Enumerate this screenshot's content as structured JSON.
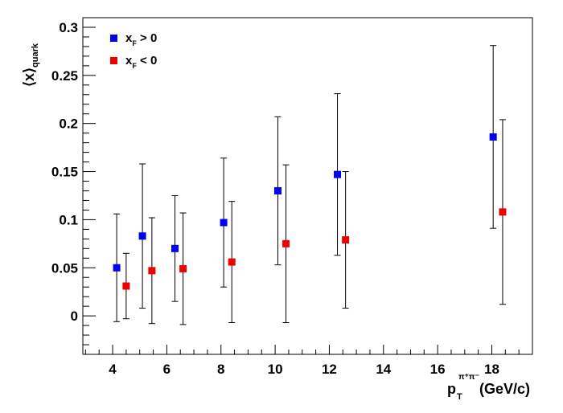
{
  "chart_data": {
    "type": "scatter",
    "xlabel": {
      "main": "p",
      "sub": "T",
      "sup": "π⁺π⁻",
      "unit": "(GeV/c)"
    },
    "ylabel": {
      "main": "⟨x⟩",
      "sub": "quark"
    },
    "xlim": [
      2.9,
      19.5
    ],
    "ylim": [
      -0.04,
      0.31
    ],
    "x_ticks": [
      4,
      6,
      8,
      10,
      12,
      14,
      16,
      18
    ],
    "x_tick_labels": [
      "4",
      "6",
      "8",
      "10",
      "12",
      "14",
      "16",
      "18"
    ],
    "y_ticks": [
      0,
      0.05,
      0.1,
      0.15,
      0.2,
      0.25,
      0.3
    ],
    "y_tick_labels": [
      "0",
      "0.05",
      "0.1",
      "0.15",
      "0.2",
      "0.25",
      "0.3"
    ],
    "grid": false,
    "legend_position": "top-left",
    "series": [
      {
        "name": "x_F > 0",
        "legend": {
          "main": "x",
          "sub": "F",
          "rest": " > 0"
        },
        "color": "#0000ee",
        "points": [
          {
            "x": 4.15,
            "y": 0.05,
            "err": 0.056
          },
          {
            "x": 5.1,
            "y": 0.083,
            "err": 0.075
          },
          {
            "x": 6.3,
            "y": 0.07,
            "err": 0.055
          },
          {
            "x": 8.1,
            "y": 0.097,
            "err": 0.067
          },
          {
            "x": 10.1,
            "y": 0.13,
            "err": 0.077
          },
          {
            "x": 12.3,
            "y": 0.147,
            "err": 0.084
          },
          {
            "x": 18.05,
            "y": 0.186,
            "err": 0.095
          }
        ]
      },
      {
        "name": "x_F < 0",
        "legend": {
          "main": "x",
          "sub": "F",
          "rest": " < 0"
        },
        "color": "#ee0000",
        "points": [
          {
            "x": 4.5,
            "y": 0.031,
            "err": 0.034
          },
          {
            "x": 5.45,
            "y": 0.047,
            "err": 0.055
          },
          {
            "x": 6.6,
            "y": 0.049,
            "err": 0.058
          },
          {
            "x": 8.4,
            "y": 0.056,
            "err": 0.063
          },
          {
            "x": 10.4,
            "y": 0.075,
            "err": 0.082
          },
          {
            "x": 12.6,
            "y": 0.079,
            "err": 0.071
          },
          {
            "x": 18.4,
            "y": 0.108,
            "err": 0.096
          }
        ]
      }
    ]
  }
}
